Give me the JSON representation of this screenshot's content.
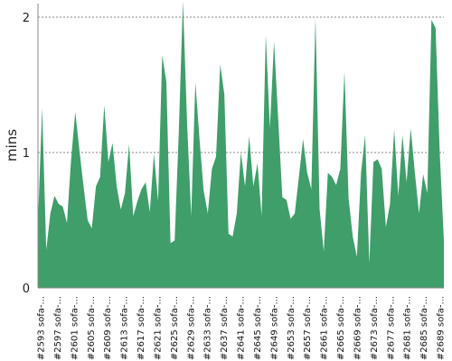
{
  "chart_data": {
    "type": "area",
    "title": "",
    "xlabel": "",
    "ylabel": "mins",
    "ylim": [
      0,
      2.1
    ],
    "yticks": [
      0,
      1,
      2
    ],
    "grid": "horizontal dashed",
    "legend": "none",
    "colors": {
      "fill": "#3f9e6a",
      "grid": "#888888",
      "axis": "#888888",
      "text": "#222222"
    },
    "x_labels": [
      "#2593 sofa-...",
      "#2597 sofa-...",
      "#2601 sofa-...",
      "#2605 sofa-...",
      "#2609 sofa-...",
      "#2613 sofa-...",
      "#2617 sofa-...",
      "#2621 sofa-...",
      "#2625 sofa-...",
      "#2629 sofa-...",
      "#2633 sofa-...",
      "#2637 sofa-...",
      "#2641 sofa-...",
      "#2645 sofa-...",
      "#2649 sofa-...",
      "#2653 sofa-...",
      "#2657 sofa-...",
      "#2661 sofa-...",
      "#2665 sofa-...",
      "#2669 sofa-...",
      "#2673 sofa-...",
      "#2677 sofa-...",
      "#2681 sofa-...",
      "#2685 sofa-...",
      "#2689 sofa-..."
    ],
    "series": [
      {
        "values": [
          0.48,
          1.33,
          0.28,
          0.55,
          0.68,
          0.62,
          0.6,
          0.48,
          0.95,
          1.3,
          1.02,
          0.75,
          0.5,
          0.44,
          0.75,
          0.82,
          1.35,
          0.93,
          1.07,
          0.75,
          0.58,
          0.7,
          1.06,
          0.53,
          0.64,
          0.73,
          0.78,
          0.56,
          0.99,
          0.64,
          1.72,
          1.52,
          0.33,
          0.35,
          1.15,
          2.12,
          1.22,
          0.53,
          1.52,
          1.1,
          0.72,
          0.55,
          0.88,
          0.97,
          1.65,
          1.43,
          0.4,
          0.38,
          0.55,
          1.0,
          0.75,
          1.12,
          0.75,
          0.92,
          0.53,
          1.87,
          1.18,
          1.82,
          1.25,
          0.67,
          0.65,
          0.51,
          0.55,
          0.82,
          1.1,
          0.85,
          0.73,
          2.0,
          0.58,
          0.27,
          0.85,
          0.82,
          0.76,
          0.88,
          1.6,
          0.66,
          0.38,
          0.23,
          0.85,
          1.13,
          0.18,
          0.93,
          0.95,
          0.88,
          0.45,
          0.62,
          1.17,
          0.68,
          1.13,
          0.78,
          1.18,
          0.85,
          0.55,
          0.84,
          0.7,
          1.98,
          1.92,
          1.0,
          0.35
        ]
      }
    ]
  }
}
